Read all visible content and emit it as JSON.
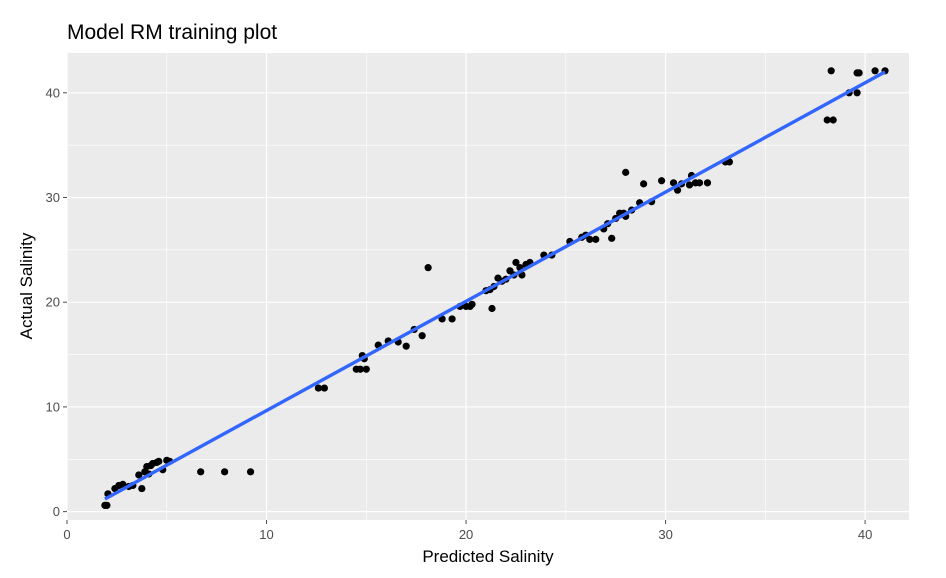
{
  "chart_data": {
    "type": "scatter",
    "title": "Model RM training plot",
    "xlabel": "Predicted Salinity",
    "ylabel": "Actual Salinity",
    "xlim": [
      0,
      42.2
    ],
    "ylim": [
      -0.8,
      43.8
    ],
    "xticks": [
      0,
      10,
      20,
      30,
      40
    ],
    "yticks": [
      0,
      10,
      20,
      30,
      40
    ],
    "grid": true,
    "legend": "none",
    "colors": {
      "panel": "#ebebeb",
      "grid": "#ffffff",
      "points": "#000000",
      "fit_line": "#3366ff",
      "ticks": "#4d4d4d"
    },
    "points": [
      [
        1.9,
        0.6
      ],
      [
        2.0,
        0.6
      ],
      [
        2.05,
        1.7
      ],
      [
        2.4,
        2.2
      ],
      [
        2.6,
        2.5
      ],
      [
        2.8,
        2.6
      ],
      [
        3.1,
        2.4
      ],
      [
        3.3,
        2.5
      ],
      [
        3.6,
        3.5
      ],
      [
        3.75,
        2.2
      ],
      [
        3.9,
        3.8
      ],
      [
        4.0,
        4.3
      ],
      [
        4.1,
        3.6
      ],
      [
        4.2,
        4.4
      ],
      [
        4.3,
        4.6
      ],
      [
        4.5,
        4.7
      ],
      [
        4.6,
        4.8
      ],
      [
        4.8,
        4.0
      ],
      [
        5.0,
        4.9
      ],
      [
        5.15,
        4.8
      ],
      [
        6.7,
        3.8
      ],
      [
        7.9,
        3.8
      ],
      [
        9.2,
        3.8
      ],
      [
        12.6,
        11.8
      ],
      [
        12.9,
        11.8
      ],
      [
        14.5,
        13.6
      ],
      [
        14.7,
        13.6
      ],
      [
        14.8,
        14.9
      ],
      [
        14.9,
        14.6
      ],
      [
        15.0,
        13.6
      ],
      [
        15.6,
        15.9
      ],
      [
        16.1,
        16.3
      ],
      [
        16.6,
        16.2
      ],
      [
        17.0,
        15.8
      ],
      [
        17.4,
        17.4
      ],
      [
        17.8,
        16.8
      ],
      [
        18.1,
        23.3
      ],
      [
        18.8,
        18.4
      ],
      [
        19.3,
        18.4
      ],
      [
        19.7,
        19.6
      ],
      [
        20.0,
        19.6
      ],
      [
        20.2,
        19.6
      ],
      [
        20.3,
        19.8
      ],
      [
        21.0,
        21.1
      ],
      [
        21.2,
        21.2
      ],
      [
        21.3,
        19.4
      ],
      [
        21.4,
        21.5
      ],
      [
        21.6,
        22.3
      ],
      [
        21.8,
        22.0
      ],
      [
        22.0,
        22.2
      ],
      [
        22.2,
        23.0
      ],
      [
        22.4,
        22.6
      ],
      [
        22.5,
        23.8
      ],
      [
        22.7,
        23.3
      ],
      [
        22.8,
        22.6
      ],
      [
        23.0,
        23.6
      ],
      [
        23.2,
        23.8
      ],
      [
        23.9,
        24.5
      ],
      [
        24.3,
        24.5
      ],
      [
        25.2,
        25.8
      ],
      [
        25.8,
        26.2
      ],
      [
        26.0,
        26.4
      ],
      [
        26.2,
        26.0
      ],
      [
        26.5,
        26.0
      ],
      [
        26.9,
        27.0
      ],
      [
        27.1,
        27.5
      ],
      [
        27.3,
        26.1
      ],
      [
        27.5,
        28.0
      ],
      [
        27.7,
        28.5
      ],
      [
        27.9,
        28.5
      ],
      [
        28.0,
        32.4
      ],
      [
        28.0,
        28.2
      ],
      [
        28.3,
        28.8
      ],
      [
        28.7,
        29.5
      ],
      [
        28.9,
        31.3
      ],
      [
        29.3,
        29.6
      ],
      [
        29.8,
        31.6
      ],
      [
        30.4,
        31.4
      ],
      [
        30.6,
        30.7
      ],
      [
        30.8,
        31.3
      ],
      [
        31.2,
        31.2
      ],
      [
        31.3,
        32.1
      ],
      [
        31.5,
        31.4
      ],
      [
        31.7,
        31.4
      ],
      [
        32.1,
        31.4
      ],
      [
        33.0,
        33.4
      ],
      [
        33.2,
        33.4
      ],
      [
        38.1,
        37.4
      ],
      [
        38.3,
        42.1
      ],
      [
        38.4,
        37.4
      ],
      [
        39.2,
        40.0
      ],
      [
        39.6,
        40.0
      ],
      [
        39.6,
        41.9
      ],
      [
        39.7,
        41.9
      ],
      [
        40.5,
        42.1
      ],
      [
        41.0,
        42.1
      ]
    ],
    "fit_line": {
      "x": [
        1.9,
        41.0
      ],
      "y": [
        1.2,
        42.0
      ]
    }
  }
}
